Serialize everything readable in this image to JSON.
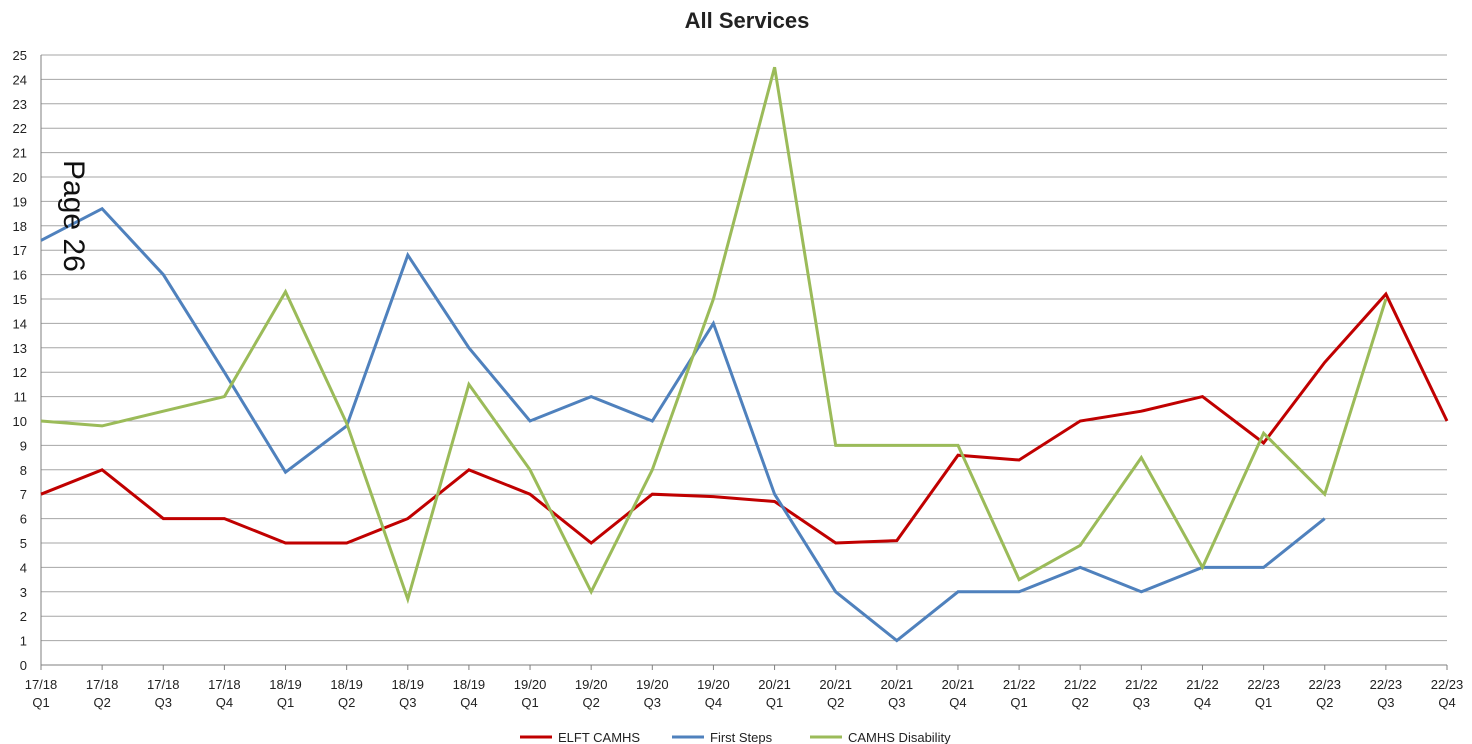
{
  "page_mark": "Page 26",
  "chart_data": {
    "type": "line",
    "title": "All Services",
    "xlabel": "",
    "ylabel": "",
    "ylim": [
      0,
      25
    ],
    "y_ticks": [
      0,
      1,
      2,
      3,
      4,
      5,
      6,
      7,
      8,
      9,
      10,
      11,
      12,
      13,
      14,
      15,
      16,
      17,
      18,
      19,
      20,
      21,
      22,
      23,
      24,
      25
    ],
    "grid": "horizontal",
    "legend_position": "bottom",
    "categories": [
      [
        "17/18",
        "Q1"
      ],
      [
        "17/18",
        "Q2"
      ],
      [
        "17/18",
        "Q3"
      ],
      [
        "17/18",
        "Q4"
      ],
      [
        "18/19",
        "Q1"
      ],
      [
        "18/19",
        "Q2"
      ],
      [
        "18/19",
        "Q3"
      ],
      [
        "18/19",
        "Q4"
      ],
      [
        "19/20",
        "Q1"
      ],
      [
        "19/20",
        "Q2"
      ],
      [
        "19/20",
        "Q3"
      ],
      [
        "19/20",
        "Q4"
      ],
      [
        "20/21",
        "Q1"
      ],
      [
        "20/21",
        "Q2"
      ],
      [
        "20/21",
        "Q3"
      ],
      [
        "20/21",
        "Q4"
      ],
      [
        "21/22",
        "Q1"
      ],
      [
        "21/22",
        "Q2"
      ],
      [
        "21/22",
        "Q3"
      ],
      [
        "21/22",
        "Q4"
      ],
      [
        "22/23",
        "Q1"
      ],
      [
        "22/23",
        "Q2"
      ],
      [
        "22/23",
        "Q3"
      ],
      [
        "22/23",
        "Q4"
      ]
    ],
    "series": [
      {
        "name": "ELFT CAMHS",
        "color": "#c00000",
        "values": [
          7,
          8,
          6,
          6,
          5,
          5,
          6,
          8,
          7,
          5,
          7,
          6.9,
          6.7,
          5,
          5.1,
          8.6,
          8.4,
          10,
          10.4,
          11,
          9.1,
          12.4,
          15.2,
          10
        ]
      },
      {
        "name": "First Steps",
        "color": "#4f81bd",
        "values": [
          17.4,
          18.7,
          16,
          12,
          7.9,
          9.8,
          16.8,
          13,
          10,
          11,
          10,
          14,
          7,
          3,
          1,
          3,
          3,
          4,
          3,
          4,
          4,
          6,
          null,
          null
        ]
      },
      {
        "name": "CAMHS Disability",
        "color": "#9bbb59",
        "values": [
          10,
          9.8,
          10.4,
          11,
          15.3,
          9.9,
          2.7,
          11.5,
          8,
          3,
          8,
          15,
          24.5,
          9,
          9,
          9,
          3.5,
          4.9,
          8.5,
          4,
          9.5,
          7,
          15,
          null
        ]
      }
    ]
  }
}
